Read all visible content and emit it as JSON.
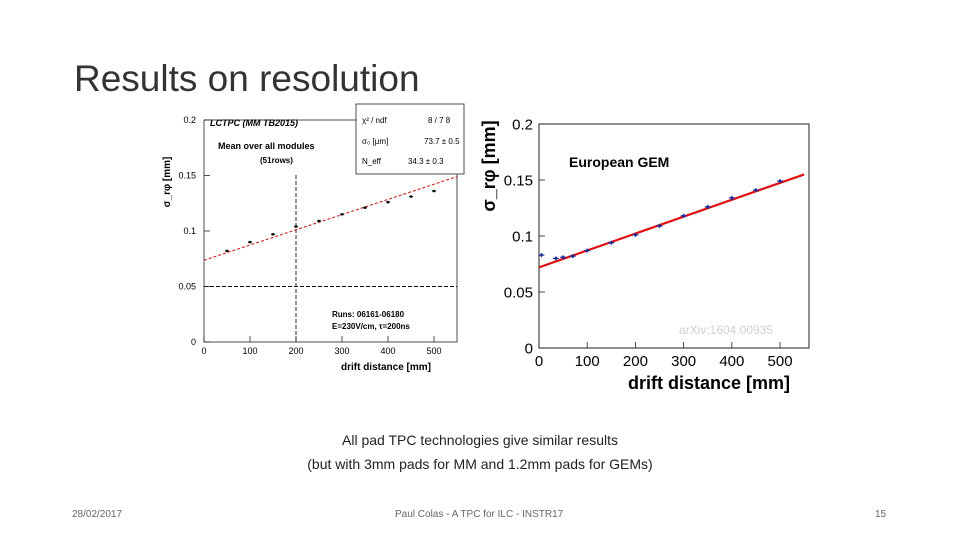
{
  "slide": {
    "title": "Results on resolution",
    "caption_line1": "All pad TPC technologies give similar results",
    "caption_line2": "(but with 3mm pads for MM and 1.2mm pads for GEMs)",
    "footer_date": "28/02/2017",
    "footer_center": "Paul Colas - A TPC for ILC - INSTR17",
    "footer_page": "15"
  },
  "chart_data": [
    {
      "type": "scatter",
      "title": "LCTPC (MM TB2015)",
      "subtitle": "Mean over all modules",
      "subtitle2": "(51rows)",
      "ylabel": "σ_rφ [mm]",
      "xlabel": "drift distance [mm]",
      "xlim": [
        0,
        550
      ],
      "ylim": [
        0,
        0.2
      ],
      "xticks": [
        "0",
        "100",
        "200",
        "300",
        "400",
        "500"
      ],
      "yticks": [
        "0",
        "0.05",
        "0.1",
        "0.15",
        "0.2"
      ],
      "grid": false,
      "fit_box": {
        "chi2_label": "χ² / ndf",
        "chi2_value": "8 / 7 8",
        "sigma0_label": "σ₀ [μm]",
        "sigma0_value": "73.7 ± 0.5",
        "neff_label": "N_eff",
        "neff_value": "34.3 ± 0.3"
      },
      "runs_text": "Runs: 06161-06180",
      "conditions_text": "E=230V/cm, τ=200ns",
      "reference_lines": {
        "x": 200,
        "y": 0.05
      },
      "series": [
        {
          "x": [
            50,
            100,
            150,
            200,
            250,
            300,
            350,
            400,
            450,
            500
          ],
          "y": [
            0.082,
            0.09,
            0.097,
            0.104,
            0.109,
            0.115,
            0.121,
            0.126,
            0.131,
            0.136
          ],
          "color": "#111111"
        }
      ],
      "fit_color": "#cc2222",
      "fit_x": [
        0,
        550
      ],
      "fit_y": [
        0.0737,
        0.149
      ]
    },
    {
      "type": "scatter",
      "title": "European GEM",
      "ylabel": "σ_rφ [mm]",
      "xlabel": "drift distance [mm]",
      "watermark": "arXiv:1604.00935",
      "xlim": [
        0,
        560
      ],
      "ylim": [
        0,
        0.2
      ],
      "xticks": [
        "0",
        "100",
        "200",
        "300",
        "400",
        "500"
      ],
      "yticks": [
        "0",
        "0.05",
        "0.1",
        "0.15",
        "0.2"
      ],
      "grid": false,
      "series": [
        {
          "x": [
            5,
            35,
            50,
            70,
            100,
            150,
            200,
            250,
            300,
            350,
            400,
            450,
            500
          ],
          "y": [
            0.083,
            0.08,
            0.081,
            0.082,
            0.087,
            0.094,
            0.101,
            0.109,
            0.118,
            0.126,
            0.134,
            0.141,
            0.149
          ],
          "color": "#1a2a99"
        }
      ],
      "fit_color": "#dd1111",
      "fit_x": [
        0,
        550
      ],
      "fit_y": [
        0.072,
        0.155
      ]
    }
  ]
}
